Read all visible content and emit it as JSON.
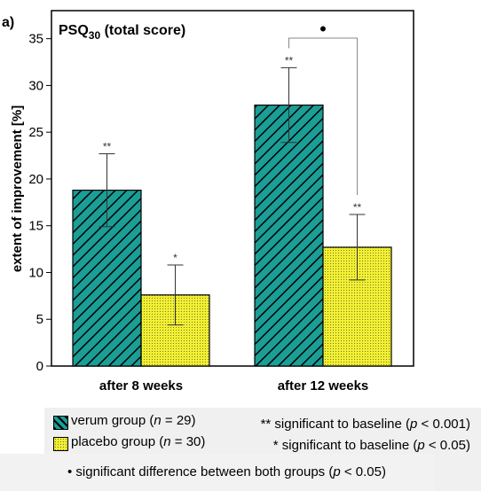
{
  "panel_label": "a)",
  "chart_data": {
    "type": "bar",
    "title": "PSQ",
    "title_sub": "30",
    "title_suffix": " (total score)",
    "ylabel": "extent of improvement [%]",
    "xlabel": "",
    "ylim": [
      0,
      38
    ],
    "yticks": [
      0,
      5,
      10,
      15,
      20,
      25,
      30,
      35
    ],
    "grid": false,
    "categories": [
      "after 8 weeks",
      "after 12 weeks"
    ],
    "series": [
      {
        "name": "verum group",
        "values": [
          18.8,
          27.9
        ],
        "err": [
          3.9,
          4.0
        ],
        "sig": [
          "**",
          "**"
        ],
        "color": "#1a9e96",
        "pattern": "hatch"
      },
      {
        "name": "placebo group",
        "values": [
          7.6,
          12.7
        ],
        "err": [
          3.2,
          3.5
        ],
        "sig": [
          "*",
          "**"
        ],
        "color": "#f2f034",
        "pattern": "dots"
      }
    ],
    "group_difference": {
      "category": "after 12 weeks",
      "marker": "•"
    }
  },
  "legend": {
    "verum": {
      "label": "verum group (",
      "n": "n",
      "rest": " = 29)"
    },
    "placebo": {
      "label": "placebo group (",
      "n": "n",
      "rest": " = 30)"
    },
    "sig2": {
      "label": "** significant to baseline (",
      "p": "p",
      "rest": " < 0.001)"
    },
    "sig1": {
      "label": "* significant to baseline (",
      "p": "p",
      "rest": " < 0.05)"
    },
    "diff": {
      "label": "• significant difference between both groups (",
      "p": "p",
      "rest": " < 0.05)"
    }
  }
}
